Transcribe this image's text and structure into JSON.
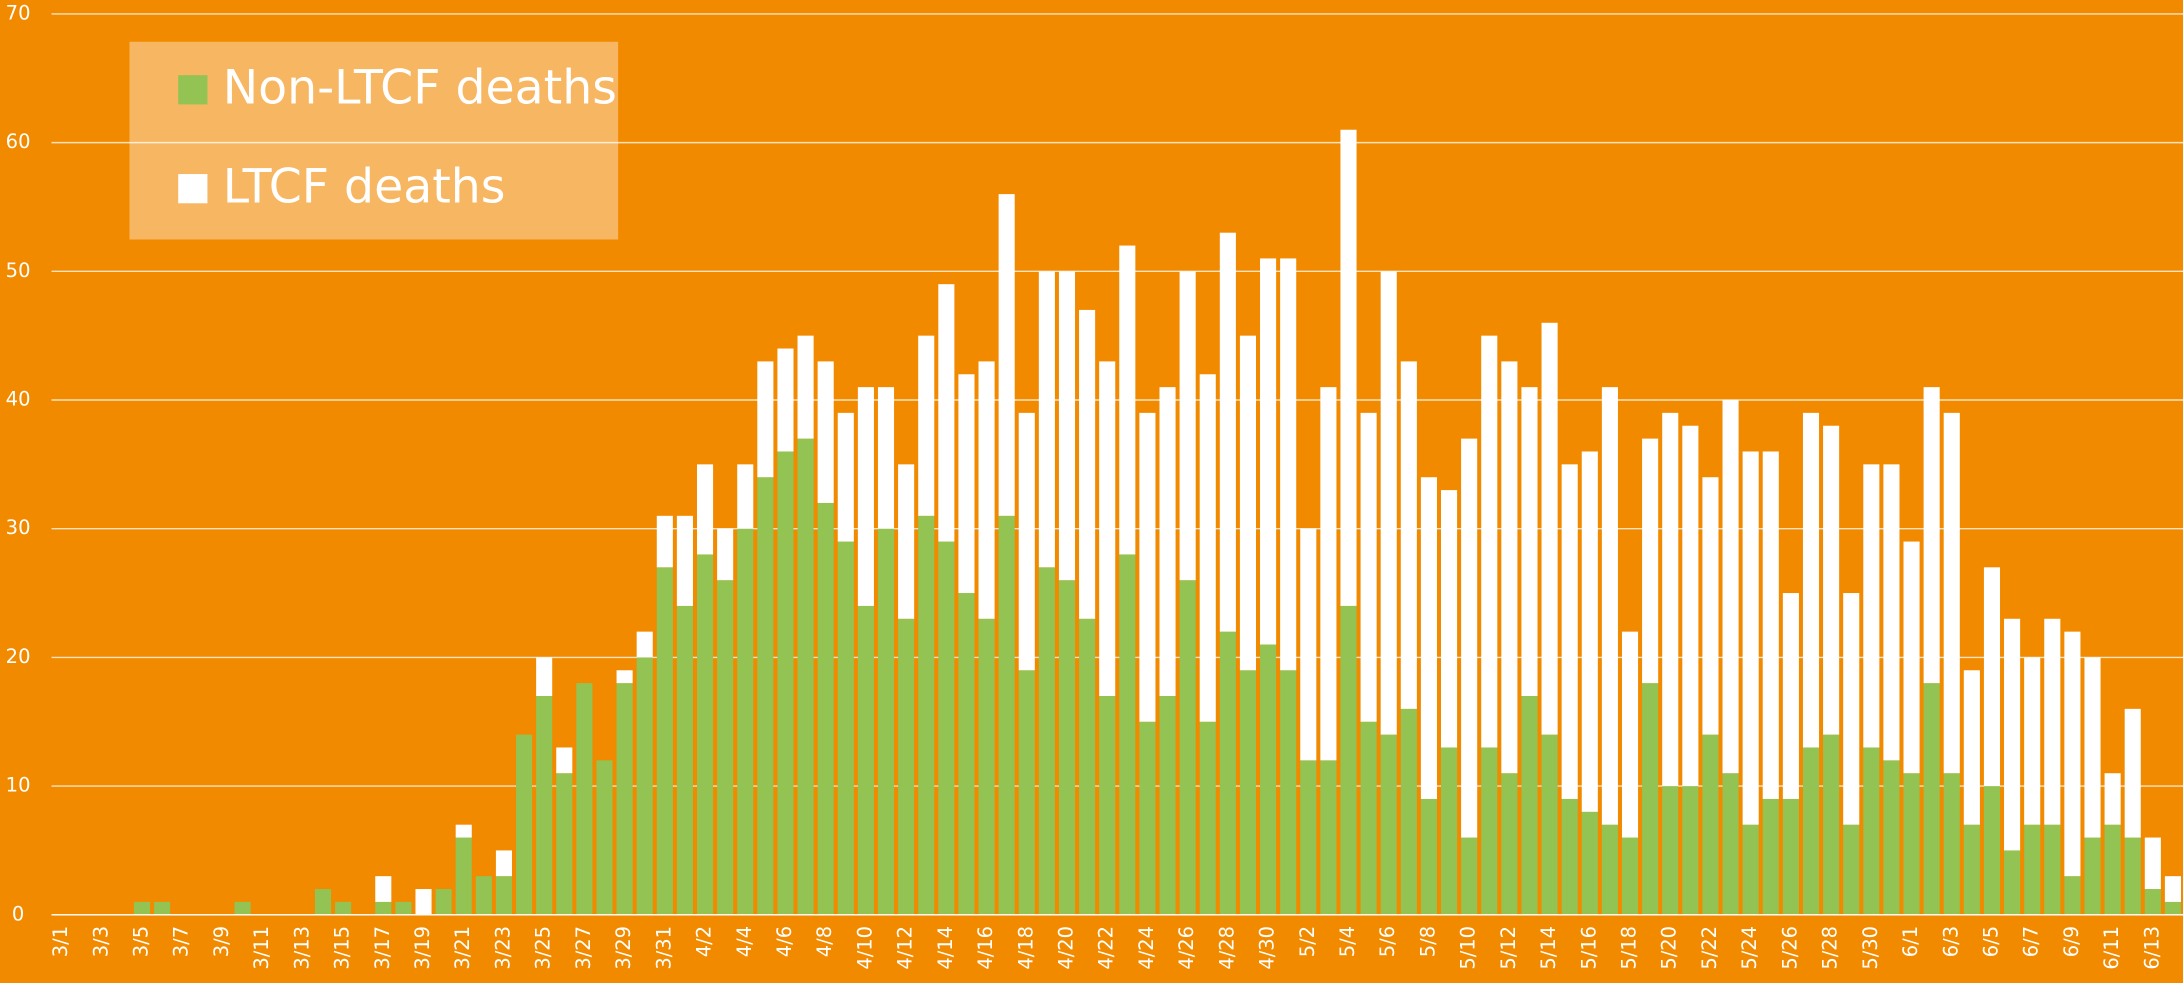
{
  "chart_data": {
    "type": "stacked_bar",
    "categories": [
      "3/1",
      null,
      "3/3",
      null,
      "3/5",
      null,
      "3/7",
      null,
      "3/9",
      null,
      "3/11",
      null,
      "3/13",
      null,
      "3/15",
      null,
      "3/17",
      null,
      "3/19",
      null,
      "3/21",
      null,
      "3/23",
      null,
      "3/25",
      null,
      "3/27",
      null,
      "3/29",
      null,
      "3/31",
      null,
      "4/2",
      null,
      "4/4",
      null,
      "4/6",
      null,
      "4/8",
      null,
      "4/10",
      null,
      "4/12",
      null,
      "4/14",
      null,
      "4/16",
      null,
      "4/18",
      null,
      "4/20",
      null,
      "4/22",
      null,
      "4/24",
      null,
      "4/26",
      null,
      "4/28",
      null,
      "4/30",
      null,
      "5/2",
      null,
      "5/4",
      null,
      "5/6",
      null,
      "5/8",
      null,
      "5/10",
      null,
      "5/12",
      null,
      "5/14",
      null,
      "5/16",
      null,
      "5/18",
      null,
      "5/20",
      null,
      "5/22",
      null,
      "5/24",
      null,
      "5/26",
      null,
      "5/28",
      null,
      "5/30",
      null,
      "6/1",
      null,
      "6/3",
      null,
      "6/5",
      null,
      "6/7",
      null,
      "6/9",
      null,
      "6/11",
      null,
      "6/13",
      null
    ],
    "series": [
      {
        "name": "Non-LTCF deaths",
        "color": "#92c353",
        "values": [
          0,
          0,
          0,
          0,
          1,
          1,
          0,
          0,
          0,
          1,
          0,
          0,
          0,
          2,
          1,
          0,
          1,
          1,
          0,
          2,
          6,
          3,
          3,
          14,
          17,
          11,
          18,
          12,
          18,
          20,
          27,
          24,
          28,
          26,
          30,
          34,
          36,
          37,
          32,
          29,
          24,
          30,
          23,
          31,
          29,
          25,
          23,
          31,
          19,
          27,
          26,
          23,
          17,
          28,
          15,
          17,
          26,
          15,
          22,
          19,
          21,
          19,
          12,
          12,
          24,
          15,
          14,
          16,
          9,
          13,
          6,
          13,
          11,
          17,
          14,
          9,
          8,
          7,
          6,
          18,
          10,
          10,
          14,
          11,
          7,
          9,
          9,
          13,
          14,
          7,
          13,
          12,
          11,
          18,
          11,
          7,
          10,
          5,
          7,
          7,
          3,
          6,
          7,
          6,
          2,
          1
        ]
      },
      {
        "name": "LTCF deaths",
        "color": "#ffffff",
        "values": [
          0,
          0,
          0,
          0,
          0,
          0,
          0,
          0,
          0,
          0,
          0,
          0,
          0,
          0,
          0,
          0,
          2,
          0,
          2,
          0,
          1,
          0,
          2,
          0,
          3,
          2,
          0,
          0,
          1,
          2,
          4,
          7,
          7,
          4,
          5,
          9,
          8,
          8,
          11,
          10,
          17,
          11,
          12,
          14,
          20,
          17,
          20,
          25,
          20,
          23,
          24,
          24,
          26,
          24,
          24,
          24,
          24,
          27,
          31,
          26,
          30,
          32,
          18,
          29,
          37,
          24,
          36,
          27,
          25,
          20,
          31,
          32,
          32,
          24,
          32,
          26,
          28,
          34,
          16,
          19,
          29,
          28,
          20,
          29,
          29,
          27,
          16,
          26,
          24,
          18,
          22,
          23,
          18,
          23,
          28,
          12,
          17,
          18,
          13,
          16,
          19,
          14,
          4,
          10,
          4,
          2
        ]
      }
    ],
    "ylim": [
      0,
      70
    ],
    "yticks": [
      0,
      10,
      20,
      30,
      40,
      50,
      60,
      70
    ],
    "grid": true,
    "legend": "upper left"
  }
}
